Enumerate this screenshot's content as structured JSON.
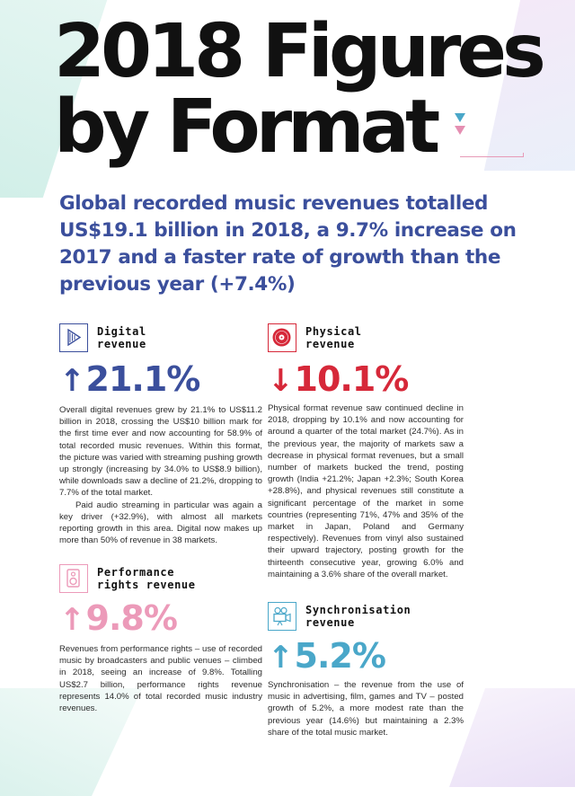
{
  "title_lines": [
    "2018 Figures",
    "by Format"
  ],
  "subtitle": "Global recorded music revenues totalled US$19.1 billion in 2018, a 9.7% increase on 2017 and a faster rate of growth than the previous year (+7.4%)",
  "colors": {
    "digital": "#3b4f9c",
    "physical": "#d62839",
    "performance": "#ec9ab9",
    "synchronisation": "#4aa7c9"
  },
  "digital": {
    "icon": "play-icon",
    "title_lines": [
      "Digital",
      "revenue"
    ],
    "arrow": "↑",
    "figure": "21.1%",
    "paragraphs": [
      "Overall digital revenues grew by 21.1% to US$11.2 billion in 2018, crossing the US$10 billion mark for the first time ever and now accounting for 58.9% of total recorded music revenues. Within this format, the picture was varied with streaming pushing growth up strongly (increasing by 34.0% to US$8.9 billion), while downloads saw a decline of 21.2%, dropping to 7.7% of the total market.",
      "Paid audio streaming in particular was again a key driver (+32.9%), with almost all markets reporting growth in this area. Digital now makes up more than 50% of revenue in 38 markets."
    ]
  },
  "physical": {
    "icon": "vinyl-record-icon",
    "title_lines": [
      "Physical",
      "revenue"
    ],
    "arrow": "↓",
    "figure": "10.1%",
    "paragraphs": [
      "Physical format revenue saw continued decline in 2018, dropping by 10.1% and now accounting for around a quarter of the total market (24.7%). As in the previous year, the majority of markets saw a decrease in physical format revenues, but a small number of markets bucked the trend, posting growth (India +21.2%; Japan +2.3%; South Korea +28.8%), and physical revenues still constitute a significant percentage of the market in some countries (representing 71%, 47% and 35% of the market in Japan, Poland and Germany respectively). Revenues from vinyl also sustained their upward trajectory, posting growth for the thirteenth consecutive year, growing 6.0% and maintaining a 3.6% share of the overall market."
    ]
  },
  "performance": {
    "icon": "speaker-icon",
    "title_lines": [
      "Performance",
      "rights revenue"
    ],
    "arrow": "↑",
    "figure": "9.8%",
    "paragraphs": [
      "Revenues from performance rights – use of recorded music by broadcasters and public venues – climbed in 2018, seeing an increase of 9.8%. Totalling US$2.7 billion, performance rights revenue represents 14.0% of total recorded music industry revenues."
    ]
  },
  "synchronisation": {
    "icon": "film-camera-icon",
    "title_lines": [
      "Synchronisation",
      "revenue"
    ],
    "arrow": "↑",
    "figure": "5.2%",
    "paragraphs": [
      "Synchronisation – the revenue from the use of music in advertising, film, games and TV – posted growth of 5.2%, a more modest rate than the previous year (14.6%) but maintaining a 2.3% share of the total music market."
    ]
  }
}
